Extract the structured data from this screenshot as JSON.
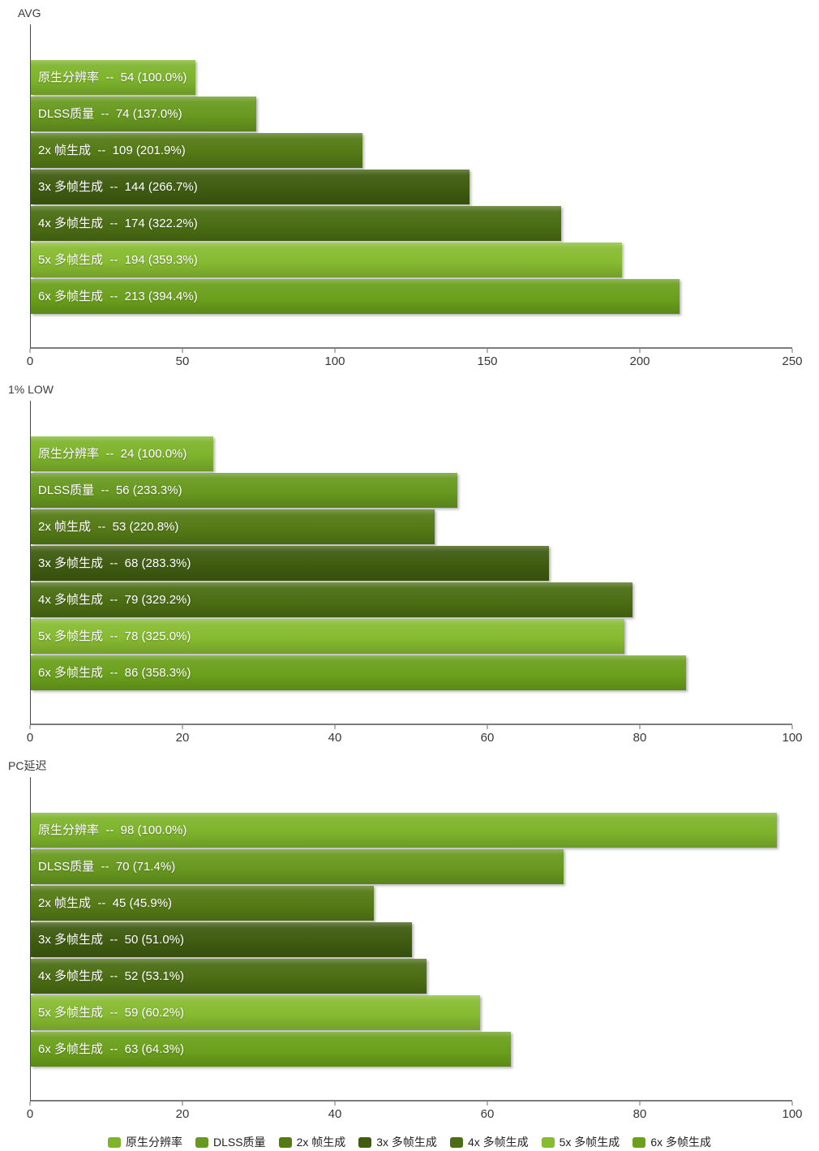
{
  "chart_data": [
    {
      "type": "bar",
      "orientation": "horizontal",
      "title": "AVG",
      "xlabel": "",
      "ylabel": "",
      "xlim": [
        0,
        250
      ],
      "xticks": [
        0,
        50,
        100,
        150,
        200,
        250
      ],
      "grid": false,
      "categories": [
        "原生分辨率",
        "DLSS质量",
        "2x 帧生成",
        "3x 多帧生成",
        "4x 多帧生成",
        "5x 多帧生成",
        "6x 多帧生成"
      ],
      "values": [
        54,
        74,
        109,
        144,
        174,
        194,
        213
      ],
      "percents": [
        "100.0%",
        "137.0%",
        "201.9%",
        "266.7%",
        "322.2%",
        "359.3%",
        "394.4%"
      ]
    },
    {
      "type": "bar",
      "orientation": "horizontal",
      "title": "1% LOW",
      "xlabel": "",
      "ylabel": "",
      "xlim": [
        0,
        100
      ],
      "xticks": [
        0,
        20,
        40,
        60,
        80,
        100
      ],
      "grid": false,
      "categories": [
        "原生分辨率",
        "DLSS质量",
        "2x 帧生成",
        "3x 多帧生成",
        "4x 多帧生成",
        "5x 多帧生成",
        "6x 多帧生成"
      ],
      "values": [
        24,
        56,
        53,
        68,
        79,
        78,
        86
      ],
      "percents": [
        "100.0%",
        "233.3%",
        "220.8%",
        "283.3%",
        "329.2%",
        "325.0%",
        "358.3%"
      ]
    },
    {
      "type": "bar",
      "orientation": "horizontal",
      "title": "PC延迟",
      "xlabel": "",
      "ylabel": "",
      "xlim": [
        0,
        100
      ],
      "xticks": [
        0,
        20,
        40,
        60,
        80,
        100
      ],
      "grid": false,
      "categories": [
        "原生分辨率",
        "DLSS质量",
        "2x 帧生成",
        "3x 多帧生成",
        "4x 多帧生成",
        "5x 多帧生成",
        "6x 多帧生成"
      ],
      "values": [
        98,
        70,
        45,
        50,
        52,
        59,
        63
      ],
      "percents": [
        "100.0%",
        "71.4%",
        "45.9%",
        "51.0%",
        "53.1%",
        "60.2%",
        "64.3%"
      ]
    }
  ],
  "series_colors": [
    "#7EB42C",
    "#68991F",
    "#547A15",
    "#3F5C10",
    "#4B6D13",
    "#87BB31",
    "#6BA01C"
  ],
  "label_separator": "--",
  "legend": {
    "position": "bottom-center",
    "items": [
      "原生分辨率",
      "DLSS质量",
      "2x 帧生成",
      "3x 多帧生成",
      "4x 多帧生成",
      "5x 多帧生成",
      "6x 多帧生成"
    ]
  },
  "colors": {
    "background": "#ffffff",
    "axis_line": "#7d7d7d",
    "y_axis_line": "#4a4a4a",
    "tick_text": "#383838",
    "title_text": "#3b3b3b",
    "bar_label_text": "#ffffff",
    "legend_text": "#222222"
  }
}
